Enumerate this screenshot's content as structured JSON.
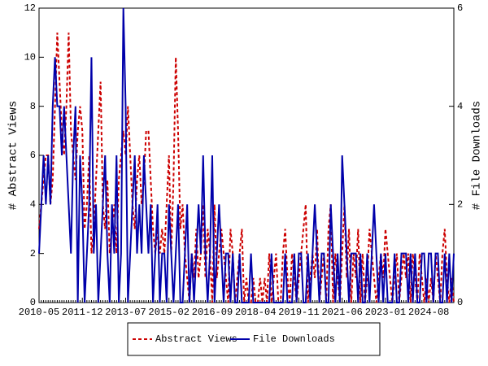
{
  "chart_data": {
    "type": "line",
    "categories": [
      "2010-05",
      null,
      null,
      null,
      null,
      null,
      null,
      null,
      null,
      null,
      null,
      null,
      null,
      null,
      null,
      null,
      null,
      null,
      null,
      "2011-12",
      null,
      null,
      null,
      null,
      null,
      null,
      null,
      null,
      null,
      null,
      null,
      null,
      null,
      null,
      null,
      null,
      null,
      null,
      "2013-07",
      null,
      null,
      null,
      null,
      null,
      null,
      null,
      null,
      null,
      null,
      null,
      null,
      null,
      null,
      null,
      null,
      null,
      null,
      "2015-02",
      null,
      null,
      null,
      null,
      null,
      null,
      null,
      null,
      null,
      null,
      null,
      null,
      null,
      null,
      null,
      null,
      null,
      null,
      "2016-09",
      null,
      null,
      null,
      null,
      null,
      null,
      null,
      null,
      null,
      null,
      null,
      null,
      null,
      null,
      null,
      null,
      null,
      null,
      "2018-04",
      null,
      null,
      null,
      null,
      null,
      null,
      null,
      null,
      null,
      null,
      null,
      null,
      null,
      null,
      null,
      null,
      null,
      null,
      "2019-11",
      null,
      null,
      null,
      null,
      null,
      null,
      null,
      null,
      null,
      null,
      null,
      null,
      null,
      null,
      null,
      null,
      null,
      null,
      "2021-06",
      null,
      null,
      null,
      null,
      null,
      null,
      null,
      null,
      null,
      null,
      null,
      null,
      null,
      null,
      null,
      null,
      null,
      null,
      "2023-01",
      null,
      null,
      null,
      null,
      null,
      null,
      null,
      null,
      null,
      null,
      null,
      null,
      null,
      null,
      null,
      null,
      null,
      null,
      "2024-08",
      null,
      null,
      null,
      null,
      null,
      null,
      null,
      null,
      null,
      null,
      null
    ],
    "series": [
      {
        "name": "Abstract Views",
        "color": "#cc0000",
        "dash": true,
        "values": [
          3,
          4,
          5,
          6,
          6,
          4,
          5,
          8,
          11,
          9,
          7,
          6,
          8,
          11,
          7,
          6,
          5,
          7,
          8,
          7,
          3,
          4,
          6,
          2,
          3,
          5,
          7,
          9,
          4,
          3,
          5,
          2,
          3,
          4,
          2,
          5,
          6,
          7,
          6,
          8,
          6,
          4,
          3,
          5,
          6,
          4,
          5,
          7,
          7,
          5,
          3,
          2,
          3,
          2,
          3,
          2,
          4,
          6,
          2,
          5,
          10,
          7,
          3,
          4,
          2,
          1,
          0,
          2,
          1,
          3,
          1,
          2,
          4,
          1,
          3,
          2,
          0,
          4,
          1,
          2,
          3,
          2,
          1,
          0,
          3,
          2,
          0,
          1,
          2,
          3,
          0,
          1,
          0,
          0,
          1,
          0,
          0,
          1,
          0,
          1,
          0,
          2,
          0,
          1,
          2,
          0,
          0,
          2,
          3,
          1,
          0,
          2,
          1,
          0,
          1,
          2,
          3,
          4,
          0,
          1,
          2,
          1,
          3,
          0,
          1,
          2,
          0,
          3,
          4,
          0,
          2,
          1,
          0,
          2,
          4,
          1,
          3,
          0,
          2,
          1,
          3,
          0,
          2,
          0,
          1,
          3,
          2,
          1,
          0,
          1,
          2,
          1,
          3,
          2,
          1,
          0,
          1,
          2,
          0,
          1,
          2,
          1,
          2,
          0,
          2,
          1,
          0,
          2,
          1,
          0,
          1,
          0,
          1,
          0,
          2,
          1,
          0,
          2,
          3,
          1,
          0,
          1,
          0
        ]
      },
      {
        "name": "File Downloads",
        "color": "#0000aa",
        "dash": false,
        "axis": "y2",
        "values": [
          1,
          2,
          3,
          2,
          3,
          2,
          4,
          5,
          4,
          4,
          3,
          4,
          3,
          2,
          1,
          3,
          4,
          0,
          3,
          2,
          0,
          1,
          2,
          5,
          1,
          2,
          0,
          1,
          2,
          3,
          1,
          0,
          2,
          1,
          3,
          0,
          1,
          6,
          4,
          0,
          1,
          2,
          3,
          1,
          2,
          1,
          3,
          2,
          1,
          2,
          0,
          1,
          2,
          0,
          1,
          1,
          0,
          2,
          1,
          0,
          1,
          2,
          0,
          0,
          1,
          2,
          0,
          1,
          0,
          1,
          2,
          1,
          3,
          1,
          0,
          1,
          3,
          0,
          1,
          2,
          1,
          0,
          1,
          1,
          0,
          1,
          0,
          0,
          1,
          0,
          0,
          0,
          0,
          1,
          0,
          0,
          0,
          0,
          0,
          0,
          0,
          0,
          1,
          0,
          0,
          0,
          0,
          0,
          1,
          0,
          0,
          0,
          1,
          0,
          1,
          1,
          0,
          0,
          1,
          0,
          1,
          2,
          1,
          0,
          1,
          1,
          0,
          0,
          2,
          1,
          0,
          1,
          0,
          3,
          2,
          1,
          0,
          1,
          1,
          1,
          0,
          1,
          0,
          0,
          1,
          0,
          1,
          2,
          1,
          0,
          1,
          0,
          1,
          0,
          0,
          0,
          1,
          0,
          0,
          1,
          1,
          1,
          0,
          1,
          0,
          1,
          0,
          0,
          1,
          1,
          0,
          1,
          1,
          0,
          1,
          1,
          0,
          0,
          1,
          0,
          1,
          0,
          1
        ]
      }
    ],
    "ylabel": "# Abstract Views",
    "y2label": "# File Downloads",
    "ylim": [
      0,
      12
    ],
    "yticks": [
      0,
      2,
      4,
      6,
      8,
      10,
      12
    ],
    "y2lim": [
      0,
      6
    ],
    "y2ticks": [
      0,
      2,
      4,
      6
    ]
  }
}
